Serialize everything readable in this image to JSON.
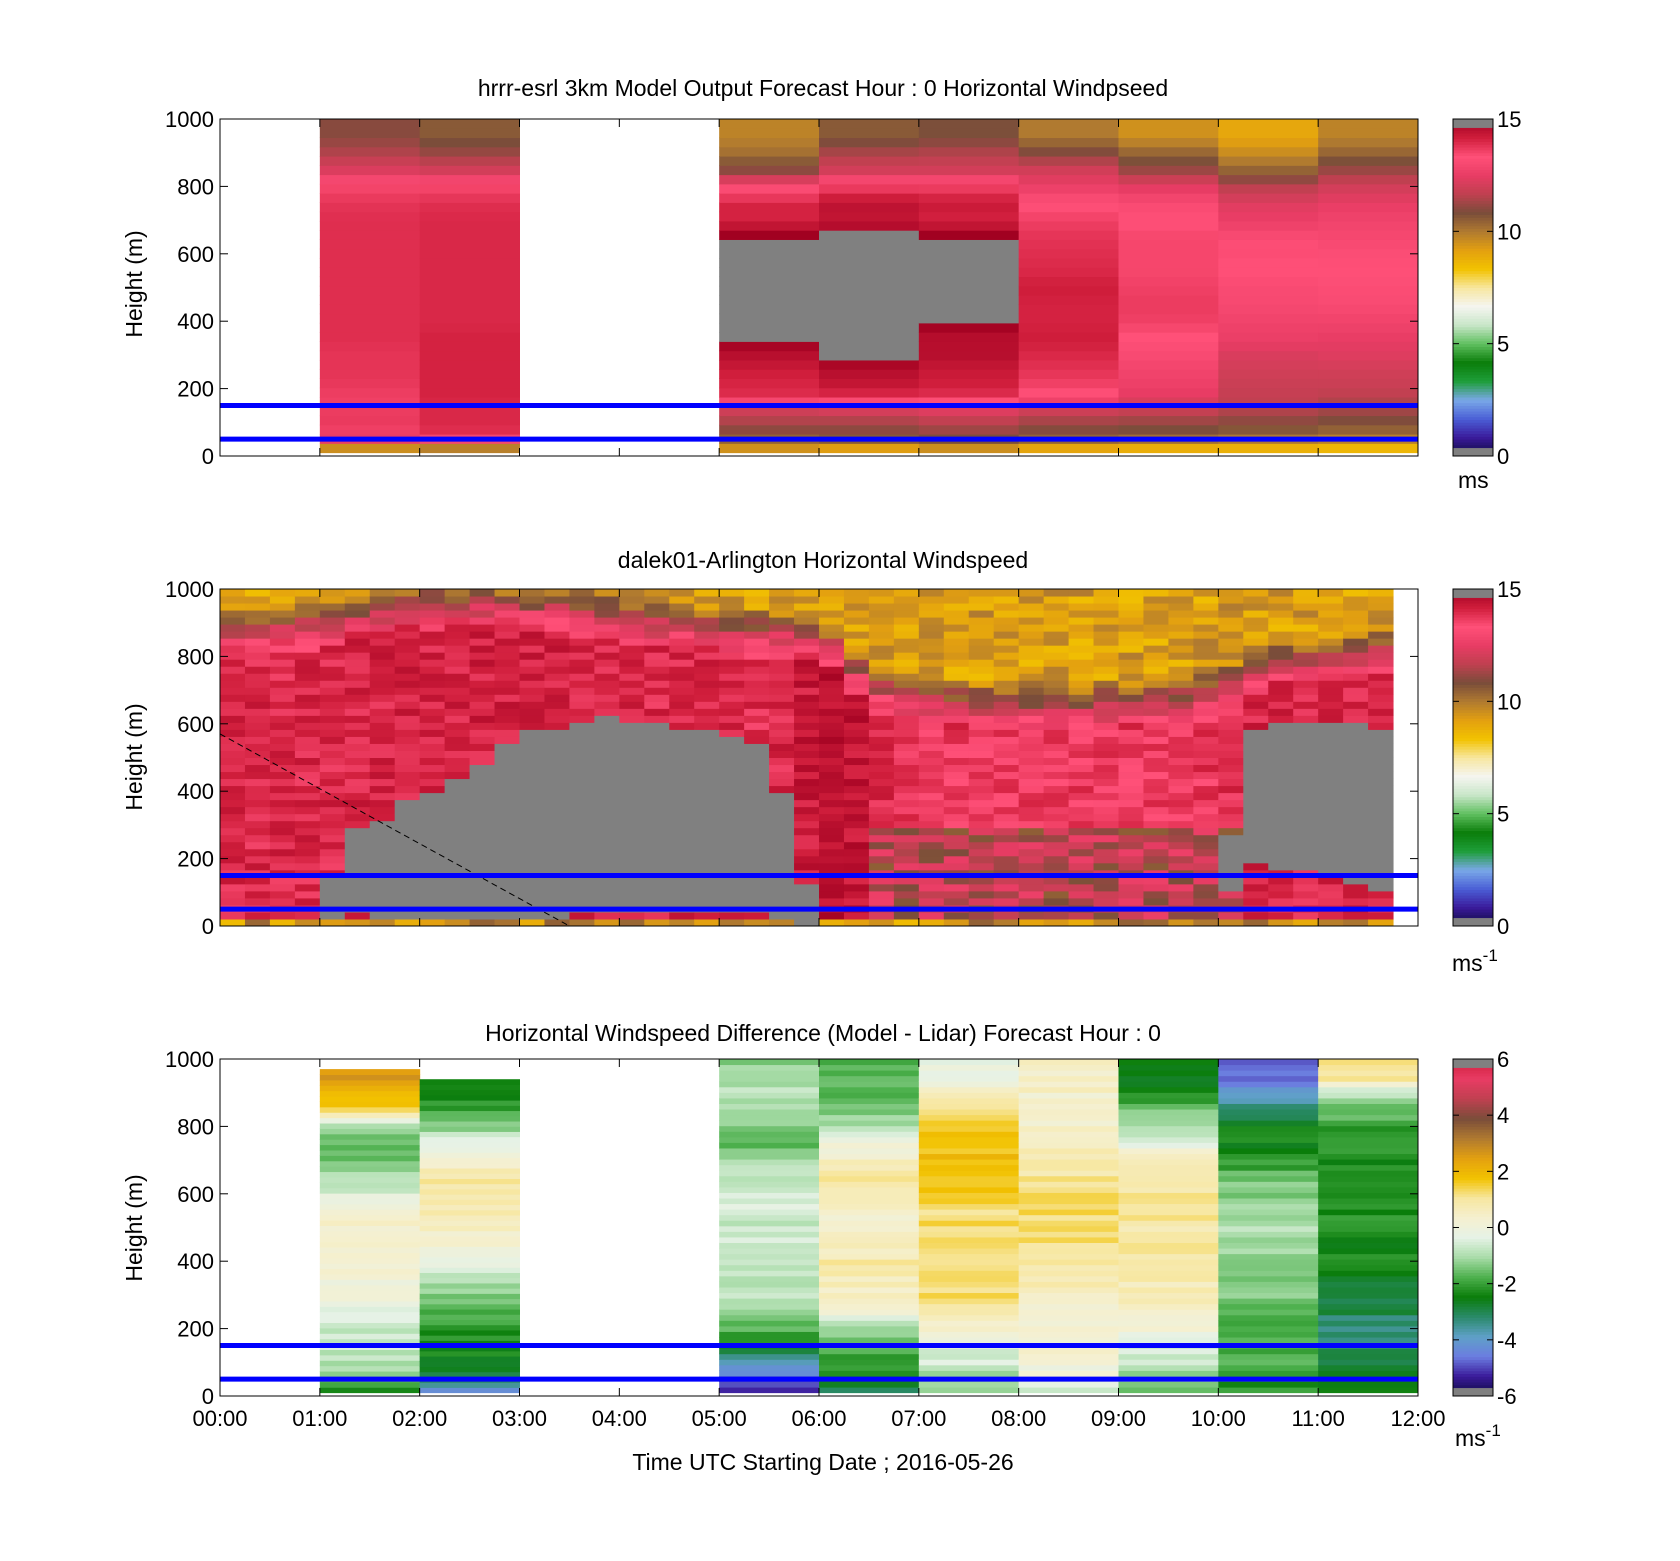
{
  "figure": {
    "xlabel": "Time UTC  Starting Date ; 2016-05-26",
    "time_ticks": [
      "00:00",
      "01:00",
      "02:00",
      "03:00",
      "04:00",
      "05:00",
      "06:00",
      "07:00",
      "08:00",
      "09:00",
      "10:00",
      "11:00",
      "12:00"
    ]
  },
  "colorscales": {
    "speed": [
      "#808080",
      "#0b0b3b",
      "#3a1a9a",
      "#4b5fd6",
      "#7aa8e8",
      "#1e9e3a",
      "#0a7d0a",
      "#5fbf5f",
      "#c8e6c8",
      "#f5f5f0",
      "#f7e7a0",
      "#f2c200",
      "#e3a010",
      "#b07a30",
      "#7a4d3a",
      "#c04050",
      "#e83c64",
      "#ff5078",
      "#d01e3c",
      "#a00020",
      "#808080"
    ],
    "diff": [
      "#808080",
      "#0b0b3b",
      "#3a1a9a",
      "#6b7de0",
      "#5fa0c8",
      "#2a8a6a",
      "#0a7d0a",
      "#4db04d",
      "#a8dca8",
      "#e6f2e6",
      "#f5f0d0",
      "#f7e7a0",
      "#f2c200",
      "#e3a010",
      "#b07a30",
      "#7a4d3a",
      "#c04050",
      "#e83c64",
      "#d01e3c",
      "#808080"
    ]
  },
  "chart_data": [
    {
      "type": "heatmap",
      "title": "hrrr-esrl 3km Model Output   Forecast Hour : 0 Horizontal Windpseed",
      "ylabel": "Height (m)",
      "xlabel": "",
      "ylim": [
        0,
        1000
      ],
      "yticks": [
        "0",
        "200",
        "400",
        "600",
        "800",
        "1000"
      ],
      "colorbar": {
        "range": [
          0,
          15
        ],
        "ticks": [
          "0",
          "5",
          "10",
          "15"
        ],
        "unit": "ms",
        "superscript": ""
      },
      "x_bin_hours": 1,
      "heights": [
        10,
        30,
        50,
        75,
        100,
        125,
        150,
        175,
        200,
        250,
        300,
        350,
        400,
        450,
        500,
        550,
        600,
        650,
        700,
        750,
        800,
        850,
        900,
        950
      ],
      "columns": [
        null,
        [
          7.5,
          10.5,
          12.5,
          13.6,
          13.7,
          13.7,
          13.6,
          13.6,
          13.7,
          13.8,
          13.8,
          13.9,
          13.9,
          13.9,
          13.9,
          13.9,
          13.9,
          13.9,
          13.9,
          13.8,
          13.5,
          12.2,
          11.5,
          11.0
        ],
        [
          7.8,
          10.8,
          12.9,
          13.9,
          14.0,
          14.0,
          14.0,
          14.1,
          14.1,
          14.1,
          14.1,
          14.1,
          14.0,
          14.0,
          14.0,
          14.0,
          14.0,
          14.0,
          14.0,
          13.9,
          13.5,
          12.0,
          11.2,
          10.6
        ],
        null,
        null,
        [
          8.8,
          9.8,
          10.4,
          11.0,
          11.4,
          11.8,
          12.2,
          13.9,
          14.0,
          14.2,
          14.6,
          15.1,
          15.1,
          15.1,
          15.1,
          15.1,
          15.1,
          15.1,
          14.1,
          14.1,
          13.0,
          11.0,
          10.2,
          9.8
        ],
        [
          8.4,
          9.6,
          10.6,
          11.0,
          11.4,
          11.8,
          12.6,
          13.8,
          14.3,
          14.6,
          15.1,
          15.1,
          15.1,
          15.1,
          15.1,
          15.1,
          15.1,
          15.1,
          14.4,
          14.5,
          13.6,
          12.0,
          11.4,
          10.6
        ],
        [
          8.6,
          10.0,
          10.8,
          11.2,
          11.6,
          12.0,
          12.8,
          13.8,
          14.1,
          14.3,
          14.6,
          14.6,
          15.1,
          15.1,
          15.1,
          15.1,
          15.1,
          15.1,
          14.1,
          14.3,
          13.6,
          12.0,
          11.5,
          10.8
        ],
        [
          7.8,
          9.6,
          10.4,
          10.9,
          11.3,
          11.7,
          12.3,
          13.2,
          13.5,
          13.8,
          14.0,
          14.2,
          14.1,
          14.1,
          14.2,
          14.0,
          13.9,
          13.8,
          13.6,
          13.3,
          12.6,
          12.0,
          11.0,
          10.0
        ],
        [
          7.6,
          9.4,
          10.2,
          10.8,
          11.2,
          11.6,
          12.0,
          12.4,
          12.6,
          12.8,
          13.1,
          13.3,
          13.6,
          13.7,
          13.6,
          13.5,
          13.5,
          13.5,
          13.3,
          13.1,
          12.4,
          11.2,
          10.4,
          9.5
        ],
        [
          7.8,
          9.2,
          10.0,
          10.6,
          11.0,
          11.4,
          11.6,
          11.8,
          11.8,
          12.0,
          12.2,
          12.6,
          12.8,
          13.0,
          13.1,
          13.3,
          13.4,
          13.1,
          12.6,
          12.3,
          11.6,
          10.4,
          9.6,
          9.0
        ],
        [
          7.8,
          9.0,
          9.8,
          10.4,
          10.8,
          11.2,
          11.4,
          11.6,
          11.8,
          12.0,
          12.3,
          12.5,
          12.8,
          13.1,
          13.2,
          13.3,
          13.2,
          13.0,
          12.8,
          12.5,
          12.0,
          11.2,
          10.4,
          9.8
        ]
      ],
      "reference_lines_m": [
        150,
        50
      ]
    },
    {
      "type": "heatmap",
      "title": "dalek01-Arlington  Horizontal Windspeed",
      "ylabel": "Height (m)",
      "xlabel": "",
      "ylim": [
        0,
        1000
      ],
      "yticks": [
        "0",
        "200",
        "400",
        "600",
        "800",
        "1000"
      ],
      "colorbar": {
        "range": [
          0,
          15
        ],
        "ticks": [
          "0",
          "5",
          "10",
          "15"
        ],
        "unit": "ms",
        "superscript": "-1"
      },
      "x_bin_hours": 0.25,
      "x_end_hours": 11.75,
      "profile_boundaries": {
        "hours": [
          0,
          0.5,
          1,
          1.25,
          1.5,
          2,
          2.5,
          3,
          3.5,
          4,
          4.5,
          5,
          5.5,
          6,
          6.25,
          6.5,
          7,
          7.5,
          8,
          8.5,
          9,
          9.5,
          10,
          10.25,
          10.5,
          11,
          11.5,
          11.75
        ],
        "gray_top_m": [
          0,
          0,
          0,
          290,
          300,
          390,
          440,
          570,
          600,
          620,
          590,
          590,
          520,
          0,
          0,
          0,
          0,
          0,
          0,
          0,
          0,
          0,
          0,
          560,
          610,
          600,
          600,
          560
        ],
        "gray_bottom_m": [
          0,
          0,
          0,
          40,
          30,
          30,
          30,
          30,
          30,
          35,
          40,
          40,
          40,
          0,
          0,
          0,
          0,
          0,
          0,
          0,
          0,
          0,
          0,
          190,
          180,
          160,
          120,
          100
        ],
        "core_speed": [
          14.0,
          14.0,
          14.0,
          14.0,
          14.1,
          14.1,
          14.1,
          14.2,
          14.1,
          14.0,
          14.0,
          14.0,
          13.9,
          14.4,
          14.6,
          14.2,
          13.6,
          13.6,
          13.6,
          13.7,
          13.6,
          13.6,
          13.8,
          14.0,
          14.1,
          14.0,
          14.0,
          14.0
        ],
        "top_transition_m": [
          800,
          810,
          820,
          840,
          850,
          870,
          880,
          870,
          860,
          840,
          820,
          800,
          800,
          780,
          720,
          640,
          600,
          590,
          580,
          580,
          590,
          600,
          620,
          660,
          700,
          720,
          740,
          760
        ]
      },
      "annotation": {
        "dashed_line_from": [
          0,
          570
        ],
        "dashed_line_to": [
          3.5,
          0
        ]
      },
      "reference_lines_m": [
        150,
        50
      ]
    },
    {
      "type": "heatmap",
      "title": "Horizontal Windspeed Difference (Model - Lidar) Forecast Hour : 0",
      "ylabel": "Height (m)",
      "xlabel": "Time UTC  Starting Date ; 2016-05-26",
      "ylim": [
        0,
        1000
      ],
      "yticks": [
        "0",
        "200",
        "400",
        "600",
        "800",
        "1000"
      ],
      "colorbar": {
        "range": [
          -6,
          6
        ],
        "ticks": [
          "-6",
          "-4",
          "-2",
          "0",
          "2",
          "4",
          "6"
        ],
        "unit": "ms",
        "superscript": "-1"
      },
      "x_bin_hours": 1,
      "heights": [
        20,
        50,
        100,
        150,
        200,
        250,
        300,
        350,
        400,
        450,
        500,
        550,
        600,
        650,
        700,
        750,
        800,
        850,
        900,
        950
      ],
      "columns": [
        null,
        [
          -2.6,
          -1.4,
          -0.9,
          -0.7,
          -0.6,
          -0.3,
          0.2,
          0.1,
          0.3,
          0.4,
          0.3,
          0.2,
          -0.4,
          -0.9,
          -1.4,
          -1.6,
          -0.8,
          1.3,
          2.2,
          2.6
        ],
        [
          -4.0,
          -3.0,
          -2.4,
          -2.4,
          -2.2,
          -1.8,
          -1.4,
          -0.9,
          -0.3,
          0.2,
          0.6,
          0.9,
          1.0,
          0.8,
          0.4,
          -0.3,
          -1.4,
          -2.0,
          -2.4,
          null
        ],
        null,
        null,
        [
          -5.2,
          -5.0,
          -3.6,
          -2.4,
          -1.8,
          -1.2,
          -0.9,
          -0.7,
          -0.6,
          -0.5,
          -0.7,
          -0.6,
          -0.4,
          -0.8,
          -1.2,
          -1.6,
          -1.4,
          -1.0,
          -0.8,
          -1.2
        ],
        [
          -3.2,
          -2.4,
          -2.2,
          -1.6,
          -1.2,
          0.2,
          0.5,
          0.7,
          0.9,
          0.6,
          0.4,
          0.5,
          0.6,
          0.9,
          0.6,
          0.0,
          -1.0,
          -1.4,
          -1.6,
          -1.8
        ],
        [
          -1.0,
          -1.2,
          -0.6,
          -0.3,
          0.4,
          1.1,
          1.3,
          1.4,
          1.3,
          1.4,
          1.3,
          1.2,
          1.5,
          1.6,
          1.8,
          1.7,
          1.6,
          1.3,
          0.8,
          -0.3
        ],
        [
          -0.6,
          0.0,
          0.2,
          0.3,
          0.1,
          0.4,
          0.6,
          0.8,
          1.0,
          1.2,
          1.3,
          1.3,
          1.2,
          1.0,
          0.8,
          0.5,
          0.3,
          0.2,
          0.4,
          0.5
        ],
        [
          -1.6,
          -1.2,
          -0.8,
          -0.6,
          0.3,
          0.5,
          0.6,
          0.8,
          1.0,
          1.0,
          0.9,
          1.0,
          1.0,
          1.0,
          0.6,
          -0.3,
          -0.8,
          -1.6,
          -2.3,
          -2.6
        ],
        [
          -2.2,
          -2.0,
          -1.8,
          -1.8,
          -1.8,
          -1.6,
          -1.4,
          -1.3,
          -1.1,
          -1.0,
          -1.0,
          -1.1,
          -1.3,
          -1.6,
          -2.2,
          -2.4,
          -2.4,
          -3.2,
          -4.2,
          -4.8
        ],
        [
          -2.6,
          -2.6,
          -3.0,
          -3.2,
          -3.4,
          -3.0,
          -2.8,
          -2.6,
          -2.4,
          -2.3,
          -2.2,
          -2.2,
          -2.2,
          -2.2,
          -2.3,
          -2.2,
          -2.0,
          -1.6,
          -0.6,
          1.2
        ]
      ],
      "reference_lines_m": [
        150,
        50
      ]
    }
  ]
}
